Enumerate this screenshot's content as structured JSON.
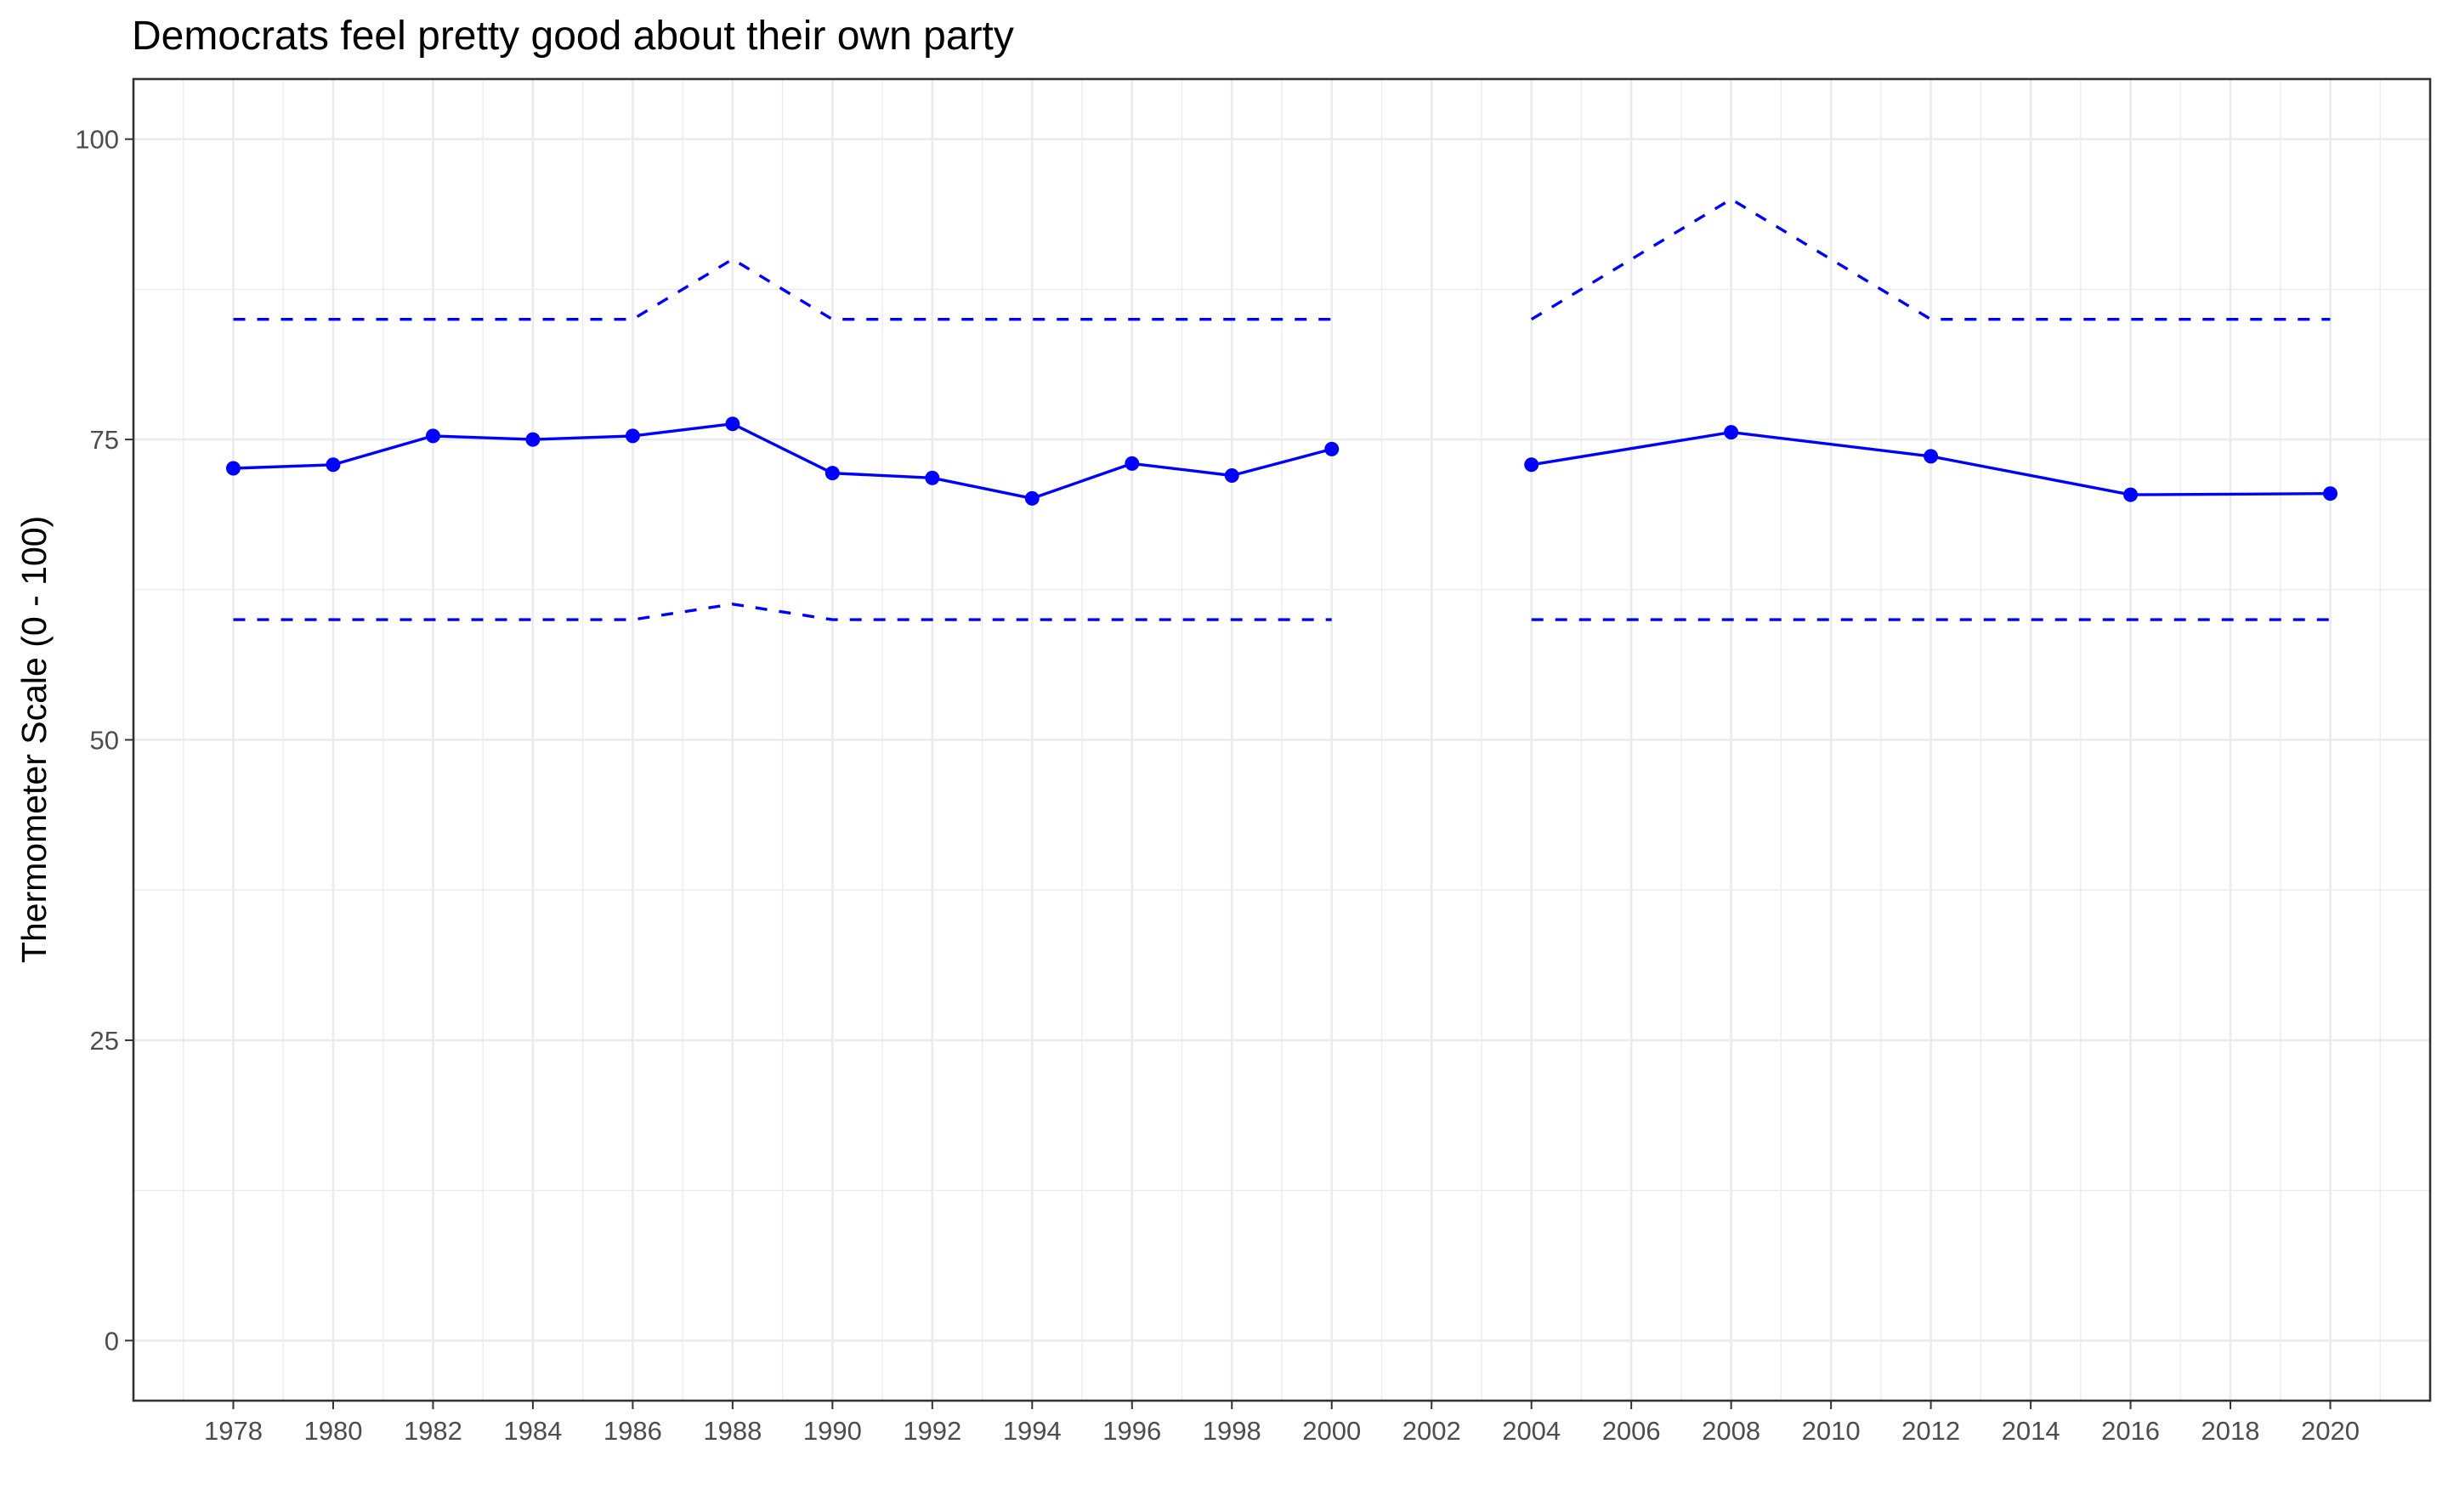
{
  "chart_data": {
    "type": "line",
    "title": "Democrats feel pretty good about their own party",
    "xlabel": "",
    "ylabel": "Thermometer Scale (0 - 100)",
    "xlim": [
      1976,
      2022
    ],
    "ylim": [
      -5,
      105
    ],
    "x_ticks": [
      1978,
      1980,
      1982,
      1984,
      1986,
      1988,
      1990,
      1992,
      1994,
      1996,
      1998,
      2000,
      2002,
      2004,
      2006,
      2008,
      2010,
      2012,
      2014,
      2016,
      2018,
      2020
    ],
    "y_ticks": [
      0,
      25,
      50,
      75,
      100
    ],
    "grid": true,
    "color": "#0000ff",
    "series": [
      {
        "style": "solid-with-points",
        "segments": [
          [
            {
              "x": 1978,
              "y": 72.6
            },
            {
              "x": 1980,
              "y": 72.9
            },
            {
              "x": 1982,
              "y": 75.3
            },
            {
              "x": 1984,
              "y": 75.0
            },
            {
              "x": 1986,
              "y": 75.3
            },
            {
              "x": 1988,
              "y": 76.3
            },
            {
              "x": 1990,
              "y": 72.2
            },
            {
              "x": 1992,
              "y": 71.8
            },
            {
              "x": 1994,
              "y": 70.1
            },
            {
              "x": 1996,
              "y": 73.0
            },
            {
              "x": 1998,
              "y": 72.0
            },
            {
              "x": 2000,
              "y": 74.2
            }
          ],
          [
            {
              "x": 2004,
              "y": 72.9
            },
            {
              "x": 2008,
              "y": 75.6
            },
            {
              "x": 2012,
              "y": 73.6
            },
            {
              "x": 2016,
              "y": 70.4
            },
            {
              "x": 2020,
              "y": 70.5
            }
          ]
        ]
      },
      {
        "style": "dashed",
        "segments": [
          [
            {
              "x": 1978,
              "y": 85
            },
            {
              "x": 1980,
              "y": 85
            },
            {
              "x": 1982,
              "y": 85
            },
            {
              "x": 1984,
              "y": 85
            },
            {
              "x": 1986,
              "y": 85
            },
            {
              "x": 1988,
              "y": 90
            },
            {
              "x": 1990,
              "y": 85
            },
            {
              "x": 1992,
              "y": 85
            },
            {
              "x": 1994,
              "y": 85
            },
            {
              "x": 1996,
              "y": 85
            },
            {
              "x": 1998,
              "y": 85
            },
            {
              "x": 2000,
              "y": 85
            }
          ],
          [
            {
              "x": 2004,
              "y": 85
            },
            {
              "x": 2008,
              "y": 95
            },
            {
              "x": 2012,
              "y": 85
            },
            {
              "x": 2016,
              "y": 85
            },
            {
              "x": 2020,
              "y": 85
            }
          ]
        ]
      },
      {
        "style": "dashed",
        "segments": [
          [
            {
              "x": 1978,
              "y": 60
            },
            {
              "x": 1980,
              "y": 60
            },
            {
              "x": 1982,
              "y": 60
            },
            {
              "x": 1984,
              "y": 60
            },
            {
              "x": 1986,
              "y": 60
            },
            {
              "x": 1988,
              "y": 61.3
            },
            {
              "x": 1990,
              "y": 60
            },
            {
              "x": 1992,
              "y": 60
            },
            {
              "x": 1994,
              "y": 60
            },
            {
              "x": 1996,
              "y": 60
            },
            {
              "x": 1998,
              "y": 60
            },
            {
              "x": 2000,
              "y": 60
            }
          ],
          [
            {
              "x": 2004,
              "y": 60
            },
            {
              "x": 2008,
              "y": 60
            },
            {
              "x": 2012,
              "y": 60
            },
            {
              "x": 2016,
              "y": 60
            },
            {
              "x": 2020,
              "y": 60
            }
          ]
        ]
      }
    ]
  }
}
